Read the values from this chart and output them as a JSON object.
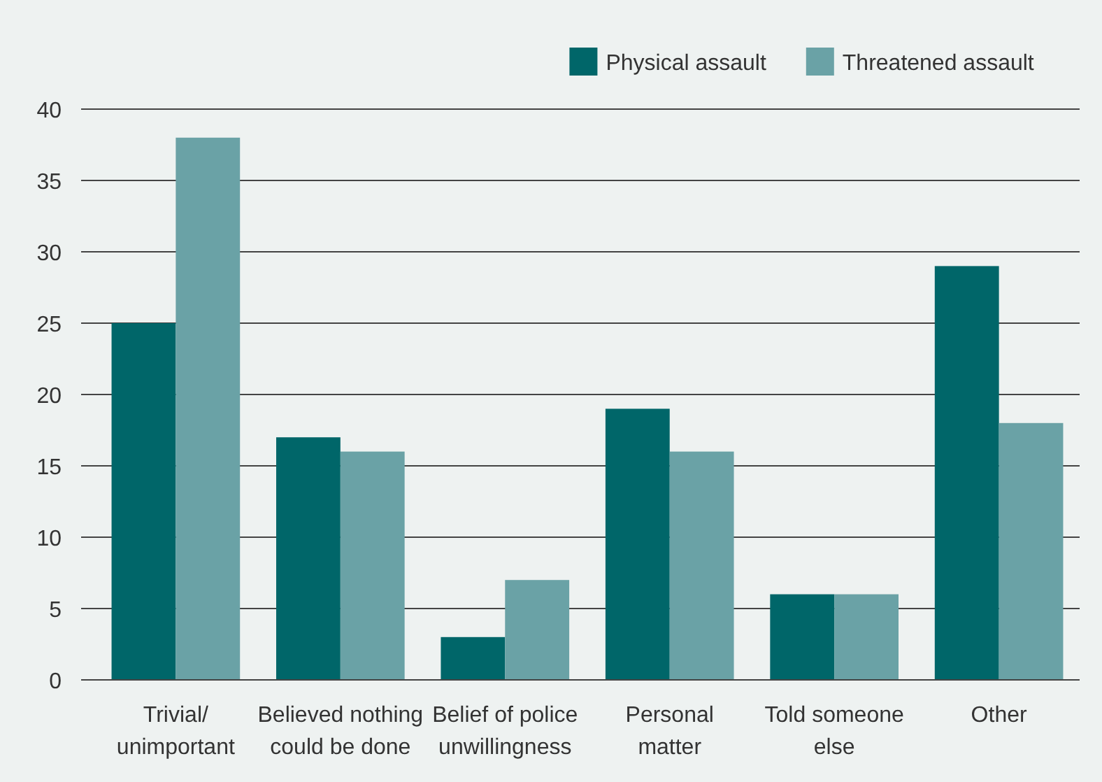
{
  "chart_data": {
    "type": "bar",
    "categories": [
      "Trivial/\nunimportant",
      "Believed nothing\ncould be done",
      "Belief of police\nunwillingness",
      "Personal\nmatter",
      "Told someone\nelse",
      "Other"
    ],
    "series": [
      {
        "name": "Physical assault",
        "color": "#006669",
        "values": [
          25,
          17,
          3,
          19,
          6,
          29
        ]
      },
      {
        "name": "Threatened assault",
        "color": "#6aa2a6",
        "values": [
          38,
          16,
          7,
          16,
          6,
          18
        ]
      }
    ],
    "ylim": [
      0,
      40
    ],
    "yticks": [
      0,
      5,
      10,
      15,
      20,
      25,
      30,
      35,
      40
    ],
    "grid": "y",
    "legend": "top right"
  }
}
